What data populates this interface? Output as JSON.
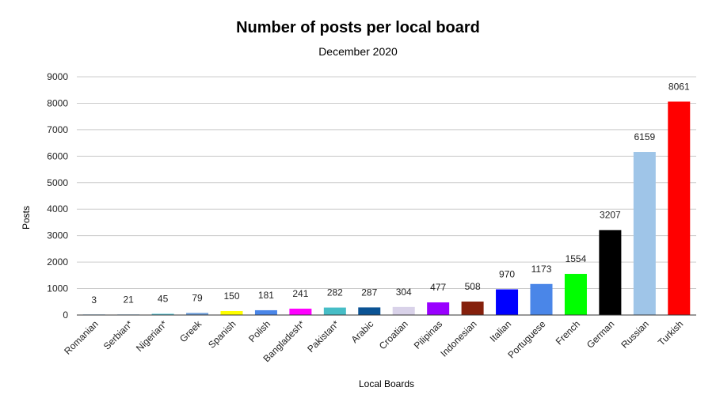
{
  "chart_data": {
    "type": "bar",
    "title": "Number of posts per local board",
    "subtitle": "December 2020",
    "xlabel": "Local Boards",
    "ylabel": "Posts",
    "ylim": [
      0,
      9000
    ],
    "yticks": [
      0,
      1000,
      2000,
      3000,
      4000,
      5000,
      6000,
      7000,
      8000,
      9000
    ],
    "grid": true,
    "categories": [
      "Romanian",
      "Serbian*",
      "Nigerian*",
      "Greek",
      "Spanish",
      "Polish",
      "Bangladesh*",
      "Pakistan*",
      "Arabic",
      "Croatian",
      "Pilipinas",
      "Indonesian",
      "Italian",
      "Portuguese",
      "French",
      "German",
      "Russian",
      "Turkish"
    ],
    "values": [
      3,
      21,
      45,
      79,
      150,
      181,
      241,
      282,
      287,
      304,
      477,
      508,
      970,
      1173,
      1554,
      3207,
      6159,
      8061
    ],
    "colors": [
      "#9ec5e8",
      "#9ec5e8",
      "#4fc3d4",
      "#6fa0dc",
      "#ffff00",
      "#4a86e8",
      "#ff00ff",
      "#46bdc6",
      "#0b5394",
      "#d9d2e9",
      "#9900ff",
      "#85200c",
      "#0000ff",
      "#4a86e8",
      "#00ff00",
      "#000000",
      "#9fc5e8",
      "#ff0000"
    ]
  }
}
